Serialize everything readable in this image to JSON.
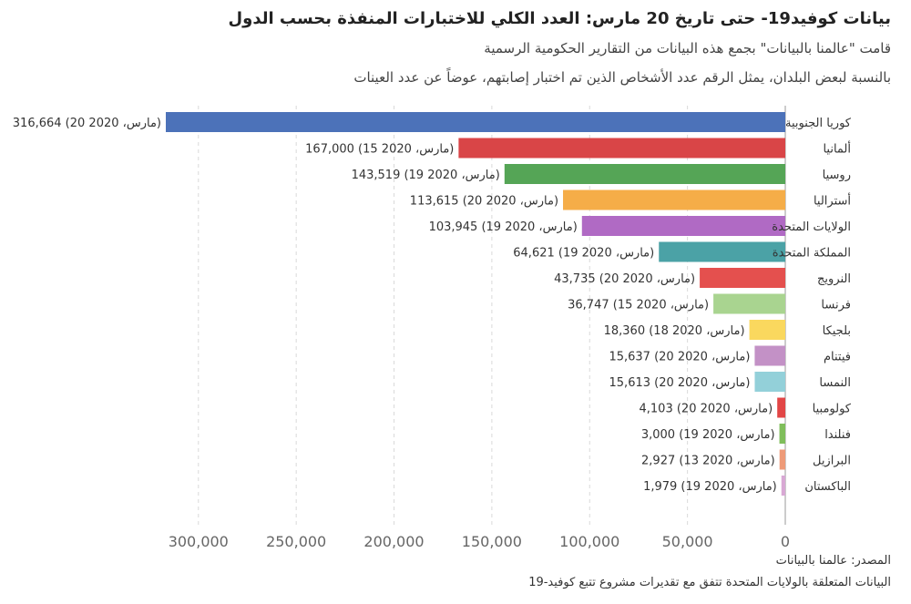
{
  "chart_data": {
    "type": "bar",
    "orientation": "horizontal",
    "title": "بيانات كوفيد19- حتى تاريخ 20 مارس: العدد الكلي للاختبارات المنفذة بحسب الدول",
    "subtitle": [
      "قامت \"عالمنا بالبيانات\" بجمع هذه البيانات من التقارير الحكومية الرسمية",
      "بالنسبة لبعض البلدان، يمثل الرقم عدد الأشخاص الذين تم اختبار إصابتهم، عوضاً عن عدد العينات"
    ],
    "categories": [
      "كوريا الجنوبية",
      "ألمانيا",
      "روسيا",
      "أستراليا",
      "الولايات المتحدة",
      "المملكة المتحدة",
      "النرويج",
      "فرنسا",
      "بلجيكا",
      "فيتنام",
      "النمسا",
      "كولومبيا",
      "فنلندا",
      "البرازيل",
      "الباكستان"
    ],
    "values": [
      316664,
      167000,
      143519,
      113615,
      103945,
      64621,
      43735,
      36747,
      18360,
      15637,
      15613,
      4103,
      3000,
      2927,
      1979
    ],
    "value_labels": [
      "316,664 (20 مارس، 2020)",
      "167,000 (15 مارس، 2020)",
      "143,519 (19 مارس، 2020)",
      "113,615 (20 مارس، 2020)",
      "103,945 (19 مارس، 2020)",
      "64,621 (19 مارس، 2020)",
      "43,735 (20 مارس، 2020)",
      "36,747 (15 مارس، 2020)",
      "18,360 (18 مارس، 2020)",
      "15,637 (20 مارس، 2020)",
      "15,613 (20 مارس، 2020)",
      "4,103 (20 مارس، 2020)",
      "3,000 (19 مارس، 2020)",
      "2,927 (13 مارس، 2020)",
      "1,979 (19 مارس، 2020)"
    ],
    "colors": [
      "#4c72b9",
      "#d94547",
      "#55a556",
      "#f5ad48",
      "#b06ac4",
      "#4ba2a6",
      "#e4504e",
      "#a9d490",
      "#fad85e",
      "#c391c6",
      "#93d0d9",
      "#e24646",
      "#7fbe5b",
      "#ee9a78",
      "#d8a8d4"
    ],
    "xlim": [
      0,
      316664
    ],
    "x_ticks": [
      0,
      50000,
      100000,
      150000,
      200000,
      250000,
      300000
    ],
    "x_tick_labels": [
      "0",
      "50,000",
      "100,000",
      "150,000",
      "200,000",
      "250,000",
      "300,000"
    ],
    "grid": true,
    "axis_direction": "reversed"
  },
  "footer": {
    "source": "المصدر: عالمنا بالبيانات",
    "note": "البيانات المتعلقة بالولايات المتحدة تتفق مع تقديرات مشروع تتبع كوفيد-19"
  }
}
